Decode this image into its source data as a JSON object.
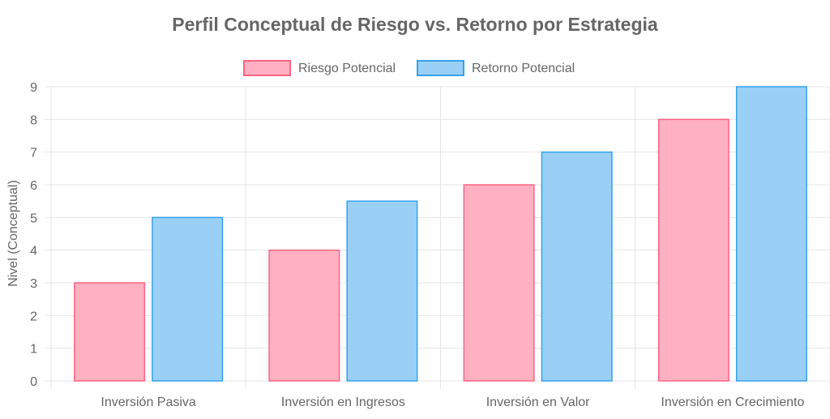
{
  "chart_data": {
    "type": "bar",
    "title": "Perfil Conceptual de Riesgo vs. Retorno por Estrategia",
    "xlabel": "",
    "ylabel": "Nivel (Conceptual)",
    "categories": [
      "Inversión Pasiva",
      "Inversión en Ingresos",
      "Inversión en Valor",
      "Inversión en Crecimiento"
    ],
    "series": [
      {
        "name": "Riesgo Potencial",
        "values": [
          3,
          4,
          6,
          8
        ],
        "color": "#ffb1c1",
        "border_color": "#ff6384"
      },
      {
        "name": "Retorno Potencial",
        "values": [
          5,
          5.5,
          7,
          9
        ],
        "color": "#9ad0f5",
        "border_color": "#36a2eb"
      }
    ],
    "ylim": [
      0,
      9
    ],
    "yticks": [
      0,
      1,
      2,
      3,
      4,
      5,
      6,
      7,
      8,
      9
    ],
    "grid": true,
    "legend_position": "top"
  }
}
